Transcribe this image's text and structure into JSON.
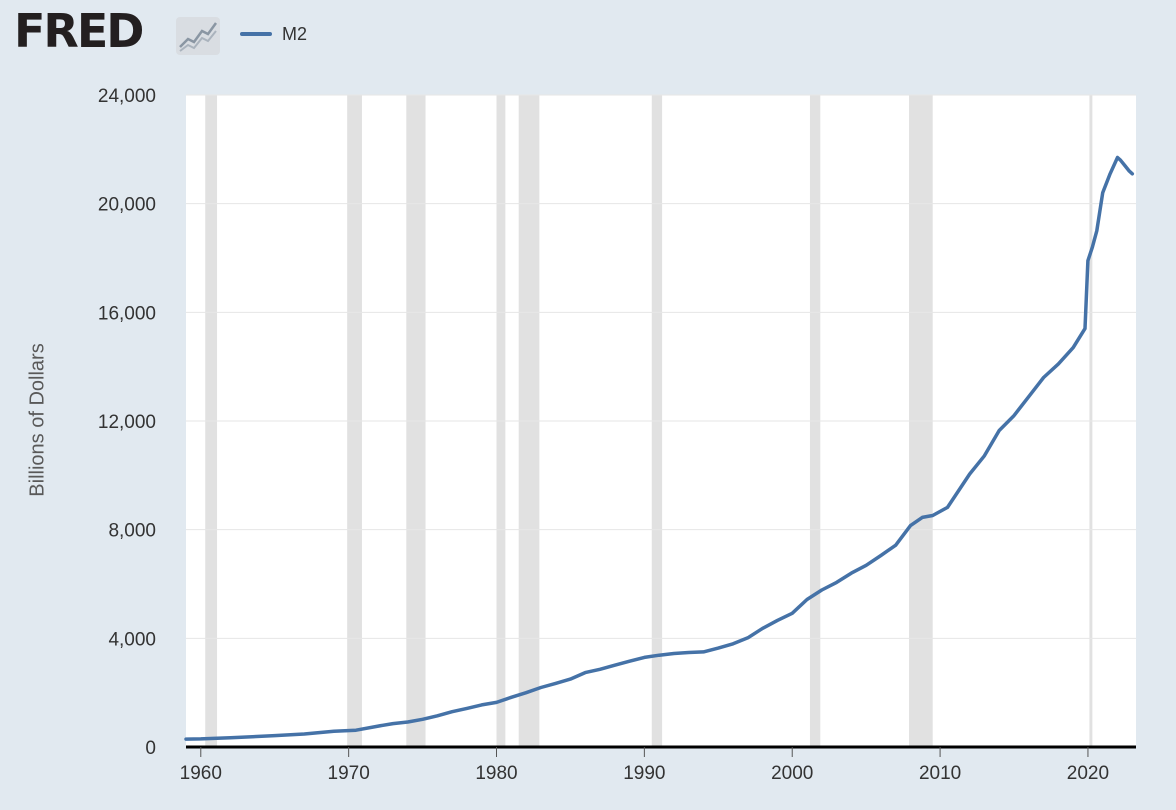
{
  "brand": {
    "name": "FRED"
  },
  "chart_data": {
    "type": "line",
    "title": "",
    "xlabel": "",
    "ylabel": "Billions of Dollars",
    "xlim": [
      1959.0,
      2023.25
    ],
    "ylim": [
      0,
      24000
    ],
    "grid": "horizontal",
    "legend_placement": "top-left",
    "x_ticks": [
      "1960",
      "1970",
      "1980",
      "1990",
      "2000",
      "2010",
      "2020"
    ],
    "x_tick_values": [
      1960,
      1970,
      1980,
      1990,
      2000,
      2010,
      2020
    ],
    "y_ticks": [
      "0",
      "4,000",
      "8,000",
      "12,000",
      "16,000",
      "20,000",
      "24,000"
    ],
    "y_tick_values": [
      0,
      4000,
      8000,
      12000,
      16000,
      20000,
      24000
    ],
    "colors": {
      "series": "#4572a7",
      "recession": "#e1e1e1",
      "grid": "#e6e6e6",
      "background": "#e1e9f0",
      "plot": "#ffffff"
    },
    "recessions": [
      [
        1960.3,
        1961.1
      ],
      [
        1969.9,
        1970.9
      ],
      [
        1973.9,
        1975.2
      ],
      [
        1980.0,
        1980.6
      ],
      [
        1981.5,
        1982.9
      ],
      [
        1990.5,
        1991.2
      ],
      [
        2001.2,
        2001.9
      ],
      [
        2007.9,
        2009.5
      ],
      [
        2020.1,
        2020.3
      ]
    ],
    "series": [
      {
        "name": "M2",
        "x": [
          1959.0,
          1960.0,
          1962.0,
          1965.0,
          1967.0,
          1969.0,
          1970.5,
          1972.0,
          1973.0,
          1974.0,
          1975.0,
          1976.0,
          1977.0,
          1978.0,
          1979.0,
          1980.0,
          1981.0,
          1982.0,
          1983.0,
          1984.0,
          1985.0,
          1986.0,
          1987.0,
          1988.0,
          1989.0,
          1990.0,
          1991.0,
          1992.0,
          1993.0,
          1994.0,
          1995.0,
          1996.0,
          1997.0,
          1998.0,
          1999.0,
          2000.0,
          2001.0,
          2002.0,
          2003.0,
          2004.0,
          2005.0,
          2006.0,
          2007.0,
          2008.0,
          2008.8,
          2009.5,
          2010.5,
          2011.5,
          2012.0,
          2013.0,
          2014.0,
          2015.0,
          2016.0,
          2017.0,
          2018.0,
          2019.0,
          2019.8,
          2020.0,
          2020.3,
          2020.6,
          2021.0,
          2021.5,
          2022.0,
          2022.2,
          2022.5,
          2022.8,
          2023.0
        ],
        "values": [
          290,
          300,
          340,
          420,
          480,
          580,
          620,
          770,
          860,
          920,
          1020,
          1150,
          1300,
          1420,
          1550,
          1640,
          1830,
          2000,
          2190,
          2340,
          2500,
          2740,
          2860,
          3010,
          3160,
          3300,
          3380,
          3440,
          3480,
          3500,
          3640,
          3800,
          4020,
          4370,
          4660,
          4920,
          5430,
          5780,
          6060,
          6400,
          6690,
          7050,
          7430,
          8150,
          8450,
          8520,
          8820,
          9640,
          10050,
          10720,
          11650,
          12200,
          12900,
          13600,
          14100,
          14700,
          15400,
          17900,
          18400,
          19000,
          20400,
          21100,
          21700,
          21600,
          21400,
          21200,
          21100
        ]
      }
    ]
  }
}
